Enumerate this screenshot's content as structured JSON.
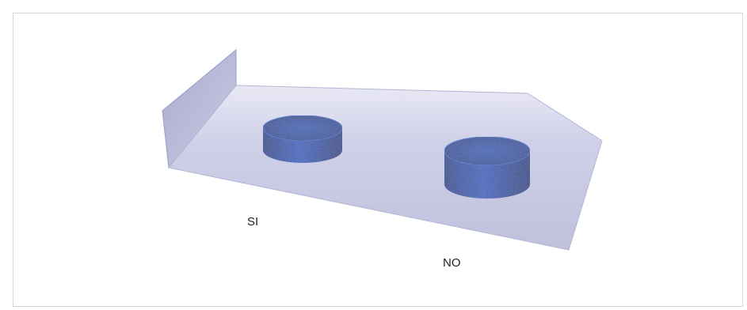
{
  "chart_data": {
    "type": "bar",
    "style": "3d-cylinder",
    "categories": [
      "SI",
      "NO"
    ],
    "values": [
      0.4,
      0.6
    ],
    "title": "",
    "xlabel": "",
    "ylabel": "",
    "legend": "none",
    "grid": false,
    "colors": {
      "bar": "#1f4fa8",
      "bar_top": "#2a5cbc",
      "floor": "#c7c8e2",
      "back_wall": "#b9bbd9",
      "frame_border": "#d6d6d6"
    }
  }
}
